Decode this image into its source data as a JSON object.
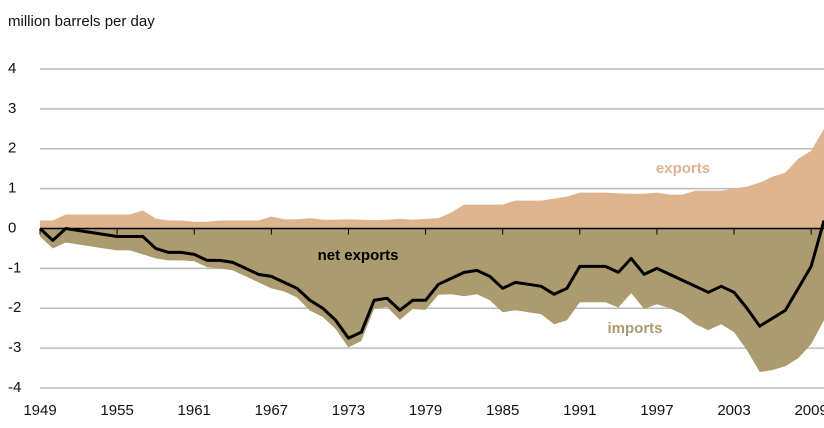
{
  "chart_data": {
    "type": "area-line",
    "ylabel": "million barrels per day",
    "x": [
      1949,
      1950,
      1951,
      1952,
      1953,
      1954,
      1955,
      1956,
      1957,
      1958,
      1959,
      1960,
      1961,
      1962,
      1963,
      1964,
      1965,
      1966,
      1967,
      1968,
      1969,
      1970,
      1971,
      1972,
      1973,
      1974,
      1975,
      1976,
      1977,
      1978,
      1979,
      1980,
      1981,
      1982,
      1983,
      1984,
      1985,
      1986,
      1987,
      1988,
      1989,
      1990,
      1991,
      1992,
      1993,
      1994,
      1995,
      1996,
      1997,
      1998,
      1999,
      2000,
      2001,
      2002,
      2003,
      2004,
      2005,
      2006,
      2007,
      2008,
      2009,
      2010
    ],
    "series": [
      {
        "name": "exports",
        "kind": "area",
        "color": "#ddb48e",
        "values": [
          0.2,
          0.2,
          0.35,
          0.35,
          0.35,
          0.35,
          0.35,
          0.35,
          0.45,
          0.25,
          0.2,
          0.2,
          0.17,
          0.17,
          0.2,
          0.2,
          0.2,
          0.2,
          0.3,
          0.23,
          0.23,
          0.26,
          0.22,
          0.22,
          0.23,
          0.22,
          0.21,
          0.22,
          0.24,
          0.22,
          0.24,
          0.26,
          0.4,
          0.6,
          0.6,
          0.6,
          0.6,
          0.7,
          0.7,
          0.7,
          0.75,
          0.8,
          0.9,
          0.9,
          0.9,
          0.88,
          0.87,
          0.87,
          0.9,
          0.85,
          0.85,
          0.95,
          0.95,
          0.95,
          1.0,
          1.05,
          1.15,
          1.3,
          1.4,
          1.75,
          1.95,
          2.5
        ]
      },
      {
        "name": "imports",
        "kind": "area",
        "color": "#ab9b6f",
        "values": [
          -0.2,
          -0.5,
          -0.35,
          -0.4,
          -0.45,
          -0.5,
          -0.55,
          -0.55,
          -0.65,
          -0.75,
          -0.8,
          -0.8,
          -0.82,
          -0.97,
          -1.0,
          -1.05,
          -1.2,
          -1.35,
          -1.5,
          -1.58,
          -1.73,
          -2.06,
          -2.22,
          -2.52,
          -2.98,
          -2.82,
          -2.01,
          -1.97,
          -2.29,
          -2.02,
          -2.04,
          -1.66,
          -1.65,
          -1.7,
          -1.65,
          -1.8,
          -2.1,
          -2.05,
          -2.1,
          -2.15,
          -2.4,
          -2.3,
          -1.85,
          -1.85,
          -1.85,
          -1.98,
          -1.62,
          -2.02,
          -1.9,
          -2.0,
          -2.15,
          -2.4,
          -2.55,
          -2.4,
          -2.6,
          -3.05,
          -3.6,
          -3.55,
          -3.45,
          -3.25,
          -2.9,
          -2.3
        ]
      },
      {
        "name": "net exports",
        "kind": "line",
        "color": "#000000",
        "values": [
          0,
          -0.3,
          0,
          -0.05,
          -0.1,
          -0.15,
          -0.2,
          -0.2,
          -0.2,
          -0.5,
          -0.6,
          -0.6,
          -0.65,
          -0.8,
          -0.8,
          -0.85,
          -1.0,
          -1.15,
          -1.2,
          -1.35,
          -1.5,
          -1.8,
          -2.0,
          -2.3,
          -2.75,
          -2.6,
          -1.8,
          -1.75,
          -2.05,
          -1.8,
          -1.8,
          -1.4,
          -1.25,
          -1.1,
          -1.05,
          -1.2,
          -1.5,
          -1.35,
          -1.4,
          -1.45,
          -1.65,
          -1.5,
          -0.95,
          -0.95,
          -0.95,
          -1.1,
          -0.75,
          -1.15,
          -1.0,
          -1.15,
          -1.3,
          -1.45,
          -1.6,
          -1.45,
          -1.6,
          -2.0,
          -2.45,
          -2.25,
          -2.05,
          -1.5,
          -0.95,
          0.2
        ]
      }
    ],
    "xlim": [
      1949,
      2010
    ],
    "xticks": [
      1949,
      1955,
      1961,
      1967,
      1973,
      1979,
      1985,
      1991,
      1997,
      2003,
      2009
    ],
    "ylim": [
      -4,
      4
    ],
    "yticks": [
      -4,
      -3,
      -2,
      -1,
      0,
      1,
      2,
      3,
      4
    ],
    "grid": true
  }
}
